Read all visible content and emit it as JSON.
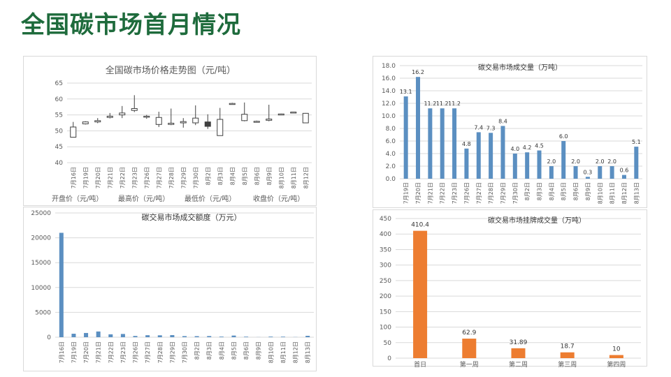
{
  "page": {
    "title": "全国碳市场首月情况"
  },
  "colors": {
    "title_green": "#1e6b3c",
    "bar_blue": "#5b8fc1",
    "bar_orange": "#ed7d31",
    "grid": "#d9d9d9",
    "axis_text": "#595959"
  },
  "chart_data": [
    {
      "id": "price",
      "type": "candlestick",
      "title": "全国碳市场价格走势图（元/吨）",
      "ylim": [
        40,
        65
      ],
      "yticks": [
        40,
        45,
        50,
        55,
        60,
        65
      ],
      "categories": [
        "7月16日",
        "7月19日",
        "7月20日",
        "7月21日",
        "7月22日",
        "7月23日",
        "7月26日",
        "7月27日",
        "7月28日",
        "7月29日",
        "7月30日",
        "8月2日",
        "8月3日",
        "8月4日",
        "8月5日",
        "8月6日",
        "8月9日",
        "8月10日",
        "8月11日",
        "8月12日"
      ],
      "open": [
        48.0,
        52.2,
        52.8,
        54.2,
        55.0,
        56.4,
        54.3,
        52.0,
        52.0,
        52.5,
        52.5,
        52.8,
        48.5,
        58.5,
        53.2,
        52.8,
        53.3,
        55.1,
        55.8,
        52.5
      ],
      "high": [
        52.8,
        53.0,
        54.0,
        55.6,
        57.8,
        61.2,
        55.0,
        56.0,
        57.0,
        54.0,
        58.0,
        55.2,
        57.2,
        58.8,
        58.9,
        53.2,
        58.2,
        55.4,
        56.0,
        55.6
      ],
      "low": [
        48.0,
        52.0,
        52.4,
        53.9,
        54.0,
        55.9,
        53.8,
        51.2,
        51.8,
        51.0,
        51.8,
        50.6,
        48.5,
        58.4,
        53.0,
        52.6,
        53.0,
        55.0,
        55.6,
        52.5
      ],
      "close": [
        51.2,
        52.8,
        53.2,
        54.6,
        55.6,
        57.0,
        54.6,
        54.2,
        52.4,
        52.9,
        54.0,
        51.4,
        53.6,
        58.6,
        55.2,
        53.0,
        53.7,
        55.3,
        55.9,
        55.5
      ],
      "legend": [
        "开盘价（元/吨）",
        "最高价（元/吨）",
        "最低价（元/吨）",
        "收盘价（元/吨）"
      ]
    },
    {
      "id": "volume",
      "type": "bar",
      "title": "碳交易市场成交量（万吨）",
      "ylim": [
        0,
        18
      ],
      "yticks": [
        "0.0",
        "2.0",
        "4.0",
        "6.0",
        "8.0",
        "10.0",
        "12.0",
        "14.0",
        "16.0",
        "18.0"
      ],
      "categories": [
        "7月19日",
        "7月20日",
        "7月21日",
        "7月22日",
        "7月23日",
        "7月26日",
        "7月27日",
        "7月28日",
        "7月29日",
        "7月30日",
        "8月2日",
        "8月3日",
        "8月4日",
        "8月5日",
        "8月6日",
        "8月9日",
        "8月10日",
        "8月11日",
        "8月12日",
        "8月13日"
      ],
      "values": [
        13.1,
        16.2,
        11.2,
        11.2,
        11.2,
        4.8,
        7.4,
        7.3,
        8.4,
        4.0,
        4.2,
        4.5,
        2.0,
        6.0,
        2.0,
        0.3,
        2.0,
        2.0,
        0.6,
        5.1
      ],
      "labels": [
        "13.1",
        "16.2",
        "11.2",
        "11.2",
        "11.2",
        "4.8",
        "7.4",
        "7.3",
        "8.4",
        "4.0",
        "4.2",
        "4.5",
        "2.0",
        "6.0",
        "2.0",
        "0.3",
        "2.0",
        "2.0",
        "0.6",
        "5.1"
      ]
    },
    {
      "id": "amount",
      "type": "bar",
      "title": "碳交易市场成交额度（万元）",
      "ylim": [
        0,
        25000
      ],
      "yticks": [
        "0",
        "5000",
        "10000",
        "15000",
        "20000",
        "25000"
      ],
      "categories": [
        "7月16日",
        "7月19日",
        "7月20日",
        "7月21日",
        "7月22日",
        "7月23日",
        "7月26日",
        "7月27日",
        "7月28日",
        "7月29日",
        "7月30日",
        "8月2日",
        "8月3日",
        "8月4日",
        "8月5日",
        "8月6日",
        "8月9日",
        "8月10日",
        "8月11日",
        "8月12日",
        "8月13日"
      ],
      "values": [
        21000,
        700,
        850,
        1150,
        580,
        650,
        250,
        400,
        380,
        420,
        220,
        210,
        230,
        120,
        330,
        110,
        20,
        120,
        110,
        30,
        280
      ]
    },
    {
      "id": "listing",
      "type": "bar",
      "title": "碳交易市场挂牌成交量（万吨）",
      "ylim": [
        0,
        450
      ],
      "yticks": [
        "0",
        "50",
        "100",
        "150",
        "200",
        "250",
        "300",
        "350",
        "400",
        "450"
      ],
      "categories": [
        "首日",
        "第一周",
        "第二周",
        "第三周",
        "第四周"
      ],
      "values": [
        410.4,
        62.9,
        31.89,
        18.7,
        10
      ],
      "labels": [
        "410.4",
        "62.9",
        "31.89",
        "18.7",
        "10"
      ]
    }
  ]
}
